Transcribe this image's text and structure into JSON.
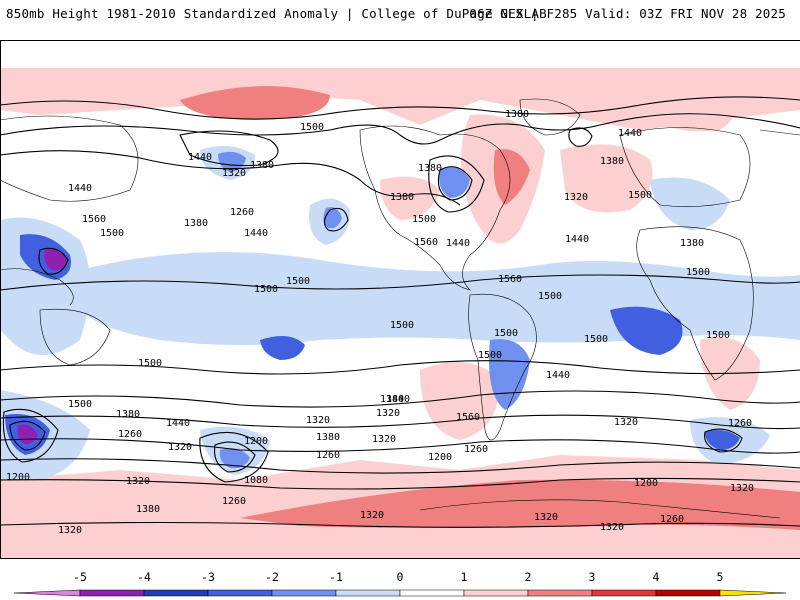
{
  "header": {
    "left_title": "850mb Height 1981-2010 Standardized Anomaly | College of DuPage NEXLAB",
    "right_title": "06Z GFS | F285 Valid: 03Z FRI NOV 28 2025"
  },
  "map": {
    "contour_labels": [
      "1500",
      "1380",
      "1440",
      "1320",
      "1380",
      "1440",
      "1560",
      "1500",
      "1260",
      "1380",
      "1440",
      "1380",
      "1500",
      "1560",
      "1440",
      "1560",
      "1440",
      "1380",
      "1500",
      "1320",
      "1380",
      "1500",
      "1440",
      "1380",
      "1500",
      "1500",
      "1500",
      "1500",
      "1500",
      "1500",
      "1500",
      "1500",
      "1440",
      "1500",
      "1380",
      "1440",
      "1380",
      "1320",
      "1260",
      "1320",
      "1200",
      "1080",
      "1260",
      "1320",
      "1200",
      "1380",
      "1320",
      "1500",
      "1440",
      "1320",
      "1560",
      "1200",
      "1260",
      "1380",
      "1320",
      "1260",
      "1320",
      "1260",
      "1200",
      "1320",
      "1320",
      "1320",
      "1260",
      "1320"
    ]
  },
  "colorbar": {
    "ticks": [
      "-5",
      "-4",
      "-3",
      "-2",
      "-1",
      "0",
      "1",
      "2",
      "3",
      "4",
      "5"
    ],
    "colors": [
      "#e080e0",
      "#9020b0",
      "#2040b0",
      "#4060e0",
      "#6f90ef",
      "#c8dcf8",
      "#ffffff",
      "#fcd0d0",
      "#f08080",
      "#e03838",
      "#b80000",
      "#f8a800",
      "#ffe000"
    ]
  }
}
